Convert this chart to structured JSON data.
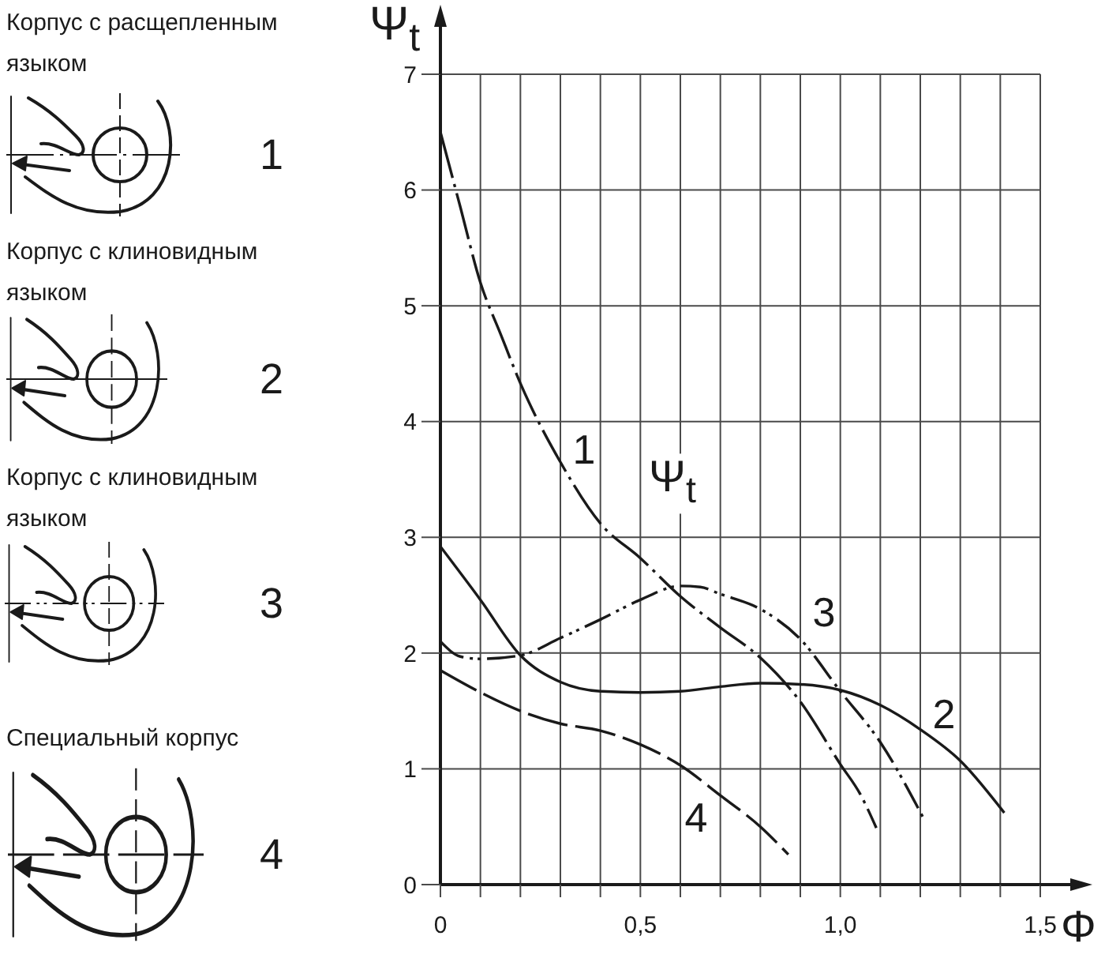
{
  "chart_data": {
    "type": "line",
    "xlabel": "Φ",
    "ylabel": "Ψ$_{t}$",
    "xlim": [
      0,
      1.5
    ],
    "ylim": [
      0,
      7
    ],
    "xticks": [
      0,
      {
        "value": 0.1,
        "label": null
      },
      {
        "value": 0.2,
        "label": null
      },
      {
        "value": 0.3,
        "label": null
      },
      {
        "value": 0.4,
        "label": null
      },
      {
        "value": 0.5,
        "label": "0,5"
      },
      {
        "value": 0.6,
        "label": null
      },
      {
        "value": 0.7,
        "label": null
      },
      {
        "value": 0.8,
        "label": null
      },
      {
        "value": 0.9,
        "label": null
      },
      {
        "value": 1.0,
        "label": "1,0"
      },
      {
        "value": 1.1,
        "label": null
      },
      {
        "value": 1.2,
        "label": null
      },
      {
        "value": 1.3,
        "label": null
      },
      {
        "value": 1.4,
        "label": null
      },
      {
        "value": 1.5,
        "label": "1,5"
      }
    ],
    "yticks": [
      0,
      1,
      2,
      3,
      4,
      5,
      6,
      7
    ],
    "grid": true,
    "legend": "left",
    "series": [
      {
        "name": "1",
        "color": "#1a1a1a",
        "line_style": "dashdot",
        "x": [
          0,
          0.05,
          0.1,
          0.15,
          0.2,
          0.3,
          0.4,
          0.5,
          0.6,
          0.7,
          0.8,
          0.9,
          1.0,
          1.05,
          1.09
        ],
        "values": [
          6.5,
          5.85,
          5.2,
          4.76,
          4.33,
          3.65,
          3.12,
          2.82,
          2.49,
          2.22,
          1.96,
          1.58,
          1.04,
          0.78,
          0.49
        ]
      },
      {
        "name": "2",
        "color": "#1a1a1a",
        "line_style": "solid",
        "x": [
          0,
          0.1,
          0.2,
          0.3,
          0.4,
          0.5,
          0.6,
          0.7,
          0.8,
          0.9,
          1.0,
          1.1,
          1.2,
          1.3,
          1.41
        ],
        "values": [
          2.92,
          2.46,
          1.98,
          1.75,
          1.67,
          1.66,
          1.67,
          1.71,
          1.74,
          1.73,
          1.68,
          1.55,
          1.34,
          1.07,
          0.62
        ]
      },
      {
        "name": "3",
        "color": "#1a1a1a",
        "line_style": "dashdotdot",
        "x": [
          0,
          0.05,
          0.1,
          0.2,
          0.3,
          0.4,
          0.5,
          0.6,
          0.65,
          0.7,
          0.8,
          0.9,
          1.0,
          1.1,
          1.21
        ],
        "values": [
          2.1,
          1.97,
          1.95,
          1.98,
          2.13,
          2.29,
          2.46,
          2.58,
          2.57,
          2.51,
          2.38,
          2.12,
          1.67,
          1.23,
          0.56
        ]
      },
      {
        "name": "4",
        "color": "#1a1a1a",
        "line_style": "dashed",
        "x": [
          0,
          0.1,
          0.2,
          0.3,
          0.4,
          0.5,
          0.6,
          0.7,
          0.8,
          0.87
        ],
        "values": [
          1.85,
          1.66,
          1.5,
          1.39,
          1.33,
          1.21,
          1.03,
          0.77,
          0.5,
          0.26
        ]
      }
    ],
    "annotations": [
      "Корпус с расщепленным языком",
      "Корпус с клиновидным языком",
      "Корпус с клиновидным языком",
      "Специальный корпус",
      "Ψ$_{t}$"
    ]
  }
}
